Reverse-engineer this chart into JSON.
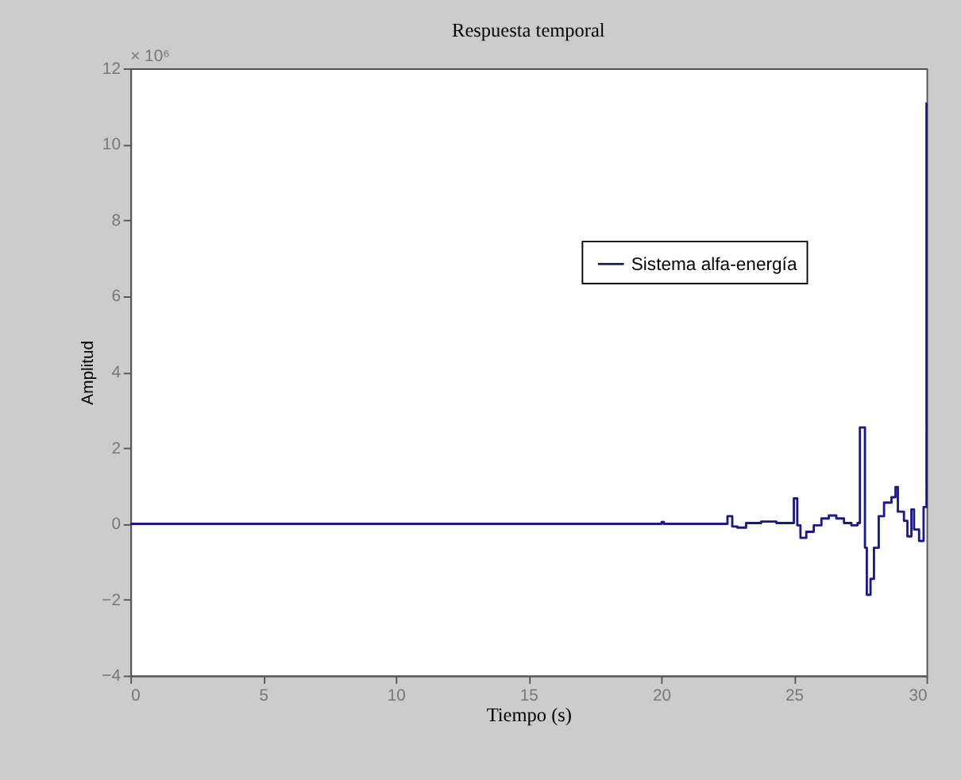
{
  "chart_data": {
    "type": "step",
    "title": "Respuesta temporal",
    "xlabel": "Tiempo (s)",
    "ylabel": "Amplitud",
    "annotations": [
      "× 10⁶"
    ],
    "xlim": [
      0,
      30
    ],
    "xticks": [
      0,
      5,
      10,
      15,
      20,
      25,
      30
    ],
    "ylim": [
      -4,
      12
    ],
    "yticks": [
      -4,
      -2,
      0,
      2,
      4,
      6,
      8,
      10,
      12
    ],
    "grid": false,
    "legend": "top right",
    "series": [
      {
        "name": "Sistema alfa-energía",
        "color": "#1a1a80",
        "x": [
          0,
          20,
          20.02,
          20.1,
          22.5,
          22.68,
          22.87,
          23.2,
          23.77,
          24.34,
          25.0,
          25.13,
          25.25,
          25.47,
          25.75,
          26.04,
          26.32,
          26.6,
          26.89,
          27.17,
          27.4,
          27.49,
          27.68,
          27.75,
          27.89,
          28.02,
          28.2,
          28.4,
          28.68,
          28.83,
          28.92,
          29.15,
          29.28,
          29.43,
          29.53,
          29.72,
          29.89,
          30
        ],
        "values": [
          0,
          0,
          0.05,
          0,
          0.2,
          -0.07,
          -0.1,
          0.02,
          0.06,
          0.02,
          0.67,
          -0.04,
          -0.37,
          -0.21,
          -0.04,
          0.14,
          0.22,
          0.14,
          0.02,
          -0.04,
          0.02,
          2.54,
          -0.63,
          -1.87,
          -1.45,
          -0.63,
          0.2,
          0.56,
          0.7,
          0.97,
          0.32,
          0.08,
          -0.33,
          0.38,
          -0.15,
          -0.45,
          0.44,
          11.1
        ]
      }
    ]
  }
}
